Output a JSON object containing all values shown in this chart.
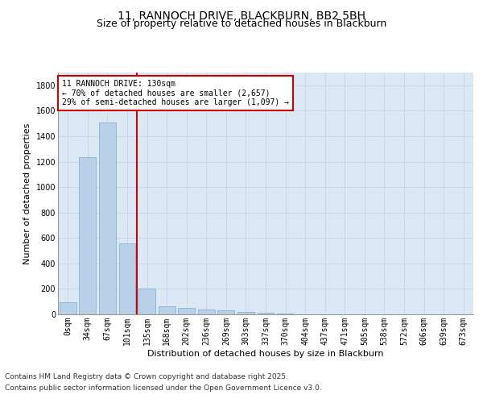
{
  "title_line1": "11, RANNOCH DRIVE, BLACKBURN, BB2 5BH",
  "title_line2": "Size of property relative to detached houses in Blackburn",
  "xlabel": "Distribution of detached houses by size in Blackburn",
  "ylabel": "Number of detached properties",
  "categories": [
    "0sqm",
    "34sqm",
    "67sqm",
    "101sqm",
    "135sqm",
    "168sqm",
    "202sqm",
    "236sqm",
    "269sqm",
    "303sqm",
    "337sqm",
    "370sqm",
    "404sqm",
    "437sqm",
    "471sqm",
    "505sqm",
    "538sqm",
    "572sqm",
    "606sqm",
    "639sqm",
    "673sqm"
  ],
  "values": [
    95,
    1235,
    1510,
    560,
    205,
    65,
    48,
    40,
    30,
    22,
    10,
    5,
    2,
    0,
    0,
    0,
    0,
    0,
    0,
    0,
    0
  ],
  "bar_color": "#b8d0e8",
  "bar_edgecolor": "#7aaad0",
  "bar_linewidth": 0.5,
  "vline_idx": 3,
  "vline_color": "#cc0000",
  "vline_linewidth": 1.5,
  "annotation_text": "11 RANNOCH DRIVE: 130sqm\n← 70% of detached houses are smaller (2,657)\n29% of semi-detached houses are larger (1,097) →",
  "annotation_box_edgecolor": "#cc0000",
  "annotation_box_facecolor": "#ffffff",
  "ylim": [
    0,
    1900
  ],
  "yticks": [
    0,
    200,
    400,
    600,
    800,
    1000,
    1200,
    1400,
    1600,
    1800
  ],
  "grid_color": "#c8d8ec",
  "background_color": "#dce8f4",
  "footer_line1": "Contains HM Land Registry data © Crown copyright and database right 2025.",
  "footer_line2": "Contains public sector information licensed under the Open Government Licence v3.0.",
  "font_size_title1": 10,
  "font_size_title2": 9,
  "font_size_axis_label": 8,
  "font_size_ticks": 7,
  "font_size_annotation": 7,
  "font_size_footer": 6.5
}
